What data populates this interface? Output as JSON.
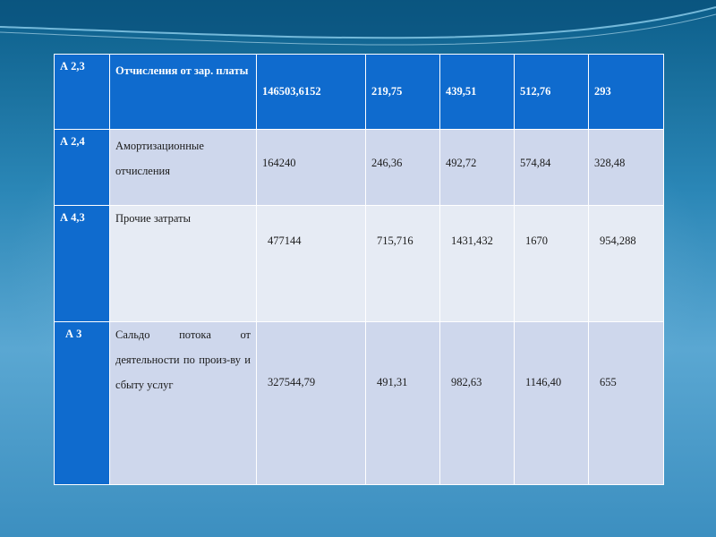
{
  "table": {
    "rows": [
      {
        "code": "А 2,3",
        "label": "Отчисления от зар. платы",
        "values": [
          "146503,6152",
          "219,75",
          "439,51",
          "512,76",
          "293"
        ]
      },
      {
        "code": "А 2,4",
        "label": "Амортизационные отчисления",
        "values": [
          "164240",
          "246,36",
          "492,72",
          "574,84",
          "328,48"
        ]
      },
      {
        "code": "А 4,3",
        "label": "Прочие затраты",
        "values": [
          "477144",
          "715,716",
          "1431,432",
          "1670",
          "954,288"
        ]
      },
      {
        "code": "А 3",
        "label": "Сальдо потока от деятельности по произ-ву и сбыту услуг",
        "values": [
          "327544,79",
          "491,31",
          "982,63",
          "1146,40",
          "655"
        ]
      }
    ]
  },
  "colors": {
    "header_row": "#0f6bce",
    "row_light": "#ced7ec",
    "row_lighter": "#e6ebf4",
    "background": "#2a86b6"
  }
}
